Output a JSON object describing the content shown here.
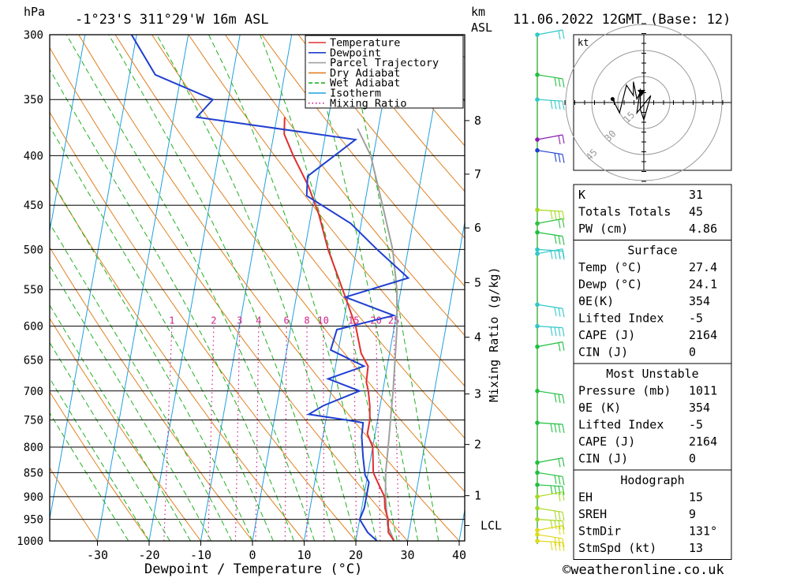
{
  "header": {
    "location": "-1°23'S 311°29'W 16m ASL",
    "datetime": "11.06.2022 12GMT (Base: 12)",
    "pressure_unit": "hPa",
    "height_unit_km": "km",
    "height_unit_asl": "ASL"
  },
  "footer": {
    "copyright": "©weatheronline.co.uk"
  },
  "chart_data": {
    "type": "line",
    "title": "",
    "xlabel": "Dewpoint / Temperature (°C)",
    "ylabel": "hPa",
    "y2label": "Mixing Ratio (g/kg)",
    "xlim": [
      -40,
      40
    ],
    "ylim": [
      1000,
      300
    ],
    "y_scale": "log",
    "skew": "skew-T (45°)",
    "pressure_ticks": [
      300,
      350,
      400,
      450,
      500,
      550,
      600,
      650,
      700,
      750,
      800,
      850,
      900,
      950,
      1000
    ],
    "temp_ticks": [
      -30,
      -20,
      -10,
      0,
      10,
      20,
      30,
      40
    ],
    "height_km_ticks": [
      {
        "label": "8",
        "p": 368
      },
      {
        "label": "7",
        "p": 418
      },
      {
        "label": "6",
        "p": 475
      },
      {
        "label": "5",
        "p": 541
      },
      {
        "label": "4",
        "p": 616
      },
      {
        "label": "3",
        "p": 705
      },
      {
        "label": "2",
        "p": 795
      },
      {
        "label": "1",
        "p": 898
      },
      {
        "label": "LCL",
        "p": 964
      }
    ],
    "mixing_ratio_labels": [
      "1",
      "2",
      "3",
      "4",
      "6",
      "8",
      "10",
      "15",
      "20",
      "25"
    ],
    "mixing_ratio_values": [
      1,
      2,
      3,
      4,
      6,
      8,
      10,
      15,
      20,
      25
    ],
    "legend": [
      "Temperature",
      "Dewpoint",
      "Parcel Trajectory",
      "Dry Adiabat",
      "Wet Adiabat",
      "Isotherm",
      "Mixing Ratio"
    ],
    "legend_position": "top-right",
    "colors": {
      "temperature": "#e03030",
      "dewpoint": "#1f3fd0",
      "parcel": "#a0a0a0",
      "dry_adiabat": "#e08020",
      "wet_adiabat": "#20b020",
      "isotherm": "#20a0e0",
      "mixing_ratio": "#d0208a"
    },
    "series": [
      {
        "name": "Temperature",
        "points": [
          [
            1000,
            27.4
          ],
          [
            980,
            26
          ],
          [
            950,
            25.5
          ],
          [
            925,
            24.5
          ],
          [
            900,
            24
          ],
          [
            875,
            22.5
          ],
          [
            850,
            21
          ],
          [
            800,
            20
          ],
          [
            775,
            18.5
          ],
          [
            750,
            18.5
          ],
          [
            725,
            18
          ],
          [
            700,
            17.2
          ],
          [
            685,
            16.5
          ],
          [
            660,
            16.3
          ],
          [
            640,
            14.5
          ],
          [
            600,
            12.5
          ],
          [
            560,
            9.5
          ],
          [
            535,
            7.5
          ],
          [
            500,
            4.5
          ],
          [
            460,
            1.5
          ],
          [
            430,
            -1.5
          ],
          [
            400,
            -5.5
          ],
          [
            380,
            -8
          ],
          [
            365,
            -8.5
          ]
        ]
      },
      {
        "name": "Dewpoint",
        "points": [
          [
            1000,
            24.1
          ],
          [
            980,
            22
          ],
          [
            950,
            20
          ],
          [
            925,
            20.5
          ],
          [
            900,
            20.5
          ],
          [
            870,
            20.5
          ],
          [
            855,
            19.5
          ],
          [
            820,
            18.5
          ],
          [
            780,
            17.5
          ],
          [
            755,
            17.3
          ],
          [
            750,
            14
          ],
          [
            740,
            6.5
          ],
          [
            725,
            9
          ],
          [
            700,
            15.5
          ],
          [
            680,
            9
          ],
          [
            660,
            15.5
          ],
          [
            635,
            8.5
          ],
          [
            605,
            9
          ],
          [
            585,
            19.5
          ],
          [
            560,
            9.5
          ],
          [
            535,
            21
          ],
          [
            500,
            14
          ],
          [
            470,
            8
          ],
          [
            440,
            -1.5
          ],
          [
            420,
            -2
          ],
          [
            385,
            6
          ],
          [
            365,
            -25.5
          ],
          [
            350,
            -23
          ],
          [
            330,
            -35
          ],
          [
            300,
            -41
          ]
        ]
      },
      {
        "name": "Parcel Trajectory",
        "points": [
          [
            1000,
            27.4
          ],
          [
            964,
            25.6
          ],
          [
            900,
            24.2
          ],
          [
            850,
            23.4
          ],
          [
            800,
            23
          ],
          [
            750,
            22.5
          ],
          [
            700,
            22
          ],
          [
            650,
            21.3
          ],
          [
            600,
            20.5
          ],
          [
            550,
            19.2
          ],
          [
            500,
            17
          ],
          [
            450,
            13.5
          ],
          [
            400,
            9.5
          ],
          [
            375,
            6
          ]
        ]
      }
    ]
  },
  "winds": [
    {
      "p": 300,
      "color": "#30c8c8"
    },
    {
      "p": 330,
      "color": "#20c040"
    },
    {
      "p": 350,
      "color": "#30c8c8"
    },
    {
      "p": 385,
      "color": "#8a20b0"
    },
    {
      "p": 395,
      "color": "#2040d0"
    },
    {
      "p": 455,
      "color": "#a8d820"
    },
    {
      "p": 470,
      "color": "#30c040"
    },
    {
      "p": 480,
      "color": "#20c040"
    },
    {
      "p": 500,
      "color": "#30c8c8"
    },
    {
      "p": 505,
      "color": "#30c8c8"
    },
    {
      "p": 570,
      "color": "#30c8c8"
    },
    {
      "p": 600,
      "color": "#30c8c8"
    },
    {
      "p": 630,
      "color": "#20c040"
    },
    {
      "p": 700,
      "color": "#20c040"
    },
    {
      "p": 755,
      "color": "#20c040"
    },
    {
      "p": 830,
      "color": "#20c040"
    },
    {
      "p": 850,
      "color": "#20c040"
    },
    {
      "p": 875,
      "color": "#20c040"
    },
    {
      "p": 900,
      "color": "#a8d820"
    },
    {
      "p": 925,
      "color": "#a8d820"
    },
    {
      "p": 950,
      "color": "#a8d820"
    },
    {
      "p": 975,
      "color": "#e0d820"
    },
    {
      "p": 985,
      "color": "#e0d820"
    },
    {
      "p": 1000,
      "color": "#e0d820"
    }
  ],
  "hodograph": {
    "unit_label": "kt",
    "ring_labels": [
      "15",
      "30",
      "45"
    ],
    "points": [
      [
        -9,
        1
      ],
      [
        -7,
        -3
      ],
      [
        -5,
        5
      ],
      [
        -3,
        2
      ],
      [
        -3,
        6
      ],
      [
        -2,
        1
      ],
      [
        -1,
        3
      ],
      [
        -1,
        -2
      ],
      [
        0,
        -5
      ],
      [
        2,
        2
      ],
      [
        -2,
        -3
      ],
      [
        -1,
        4
      ]
    ]
  },
  "indices": {
    "general": [
      {
        "label": "K",
        "value": "31"
      },
      {
        "label": "Totals Totals",
        "value": "45"
      },
      {
        "label": "PW (cm)",
        "value": "4.86"
      }
    ],
    "surface": {
      "title": "Surface",
      "rows": [
        {
          "label": "Temp (°C)",
          "value": "27.4"
        },
        {
          "label": "Dewp (°C)",
          "value": "24.1"
        },
        {
          "label": "θE(K)",
          "value": "354"
        },
        {
          "label": "Lifted Index",
          "value": "-5"
        },
        {
          "label": "CAPE (J)",
          "value": "2164"
        },
        {
          "label": "CIN (J)",
          "value": "0"
        }
      ]
    },
    "most_unstable": {
      "title": "Most Unstable",
      "rows": [
        {
          "label": "Pressure (mb)",
          "value": "1011"
        },
        {
          "label": "θE (K)",
          "value": "354"
        },
        {
          "label": "Lifted Index",
          "value": "-5"
        },
        {
          "label": "CAPE (J)",
          "value": "2164"
        },
        {
          "label": "CIN (J)",
          "value": "0"
        }
      ]
    },
    "hodograph": {
      "title": "Hodograph",
      "rows": [
        {
          "label": "EH",
          "value": "15"
        },
        {
          "label": "SREH",
          "value": "9"
        },
        {
          "label": "StmDir",
          "value": "131°"
        },
        {
          "label": "StmSpd (kt)",
          "value": "13"
        }
      ]
    }
  }
}
